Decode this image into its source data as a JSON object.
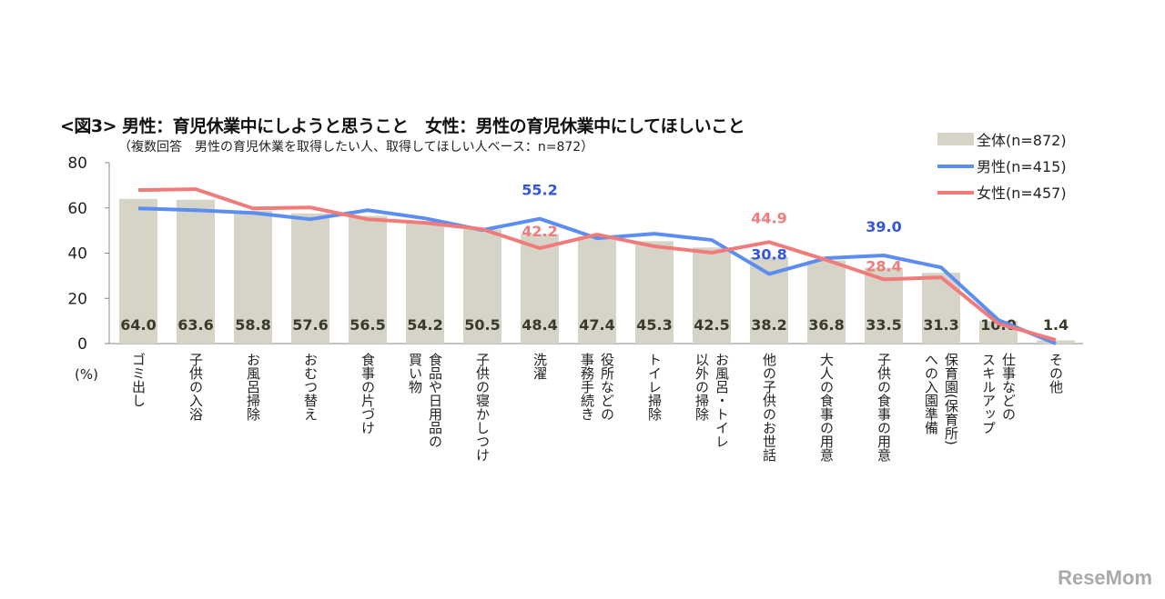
{
  "chart_data": {
    "type": "bar+line",
    "title": "<図3> 男性：育児休業中にしようと思うこと　女性：男性の育児休業中にしてほしいこと",
    "subtitle": "（複数回答　男性の育児休業を取得したい人、取得してほしい人ベース：n=872）",
    "ylabel": "(%)",
    "ylim": [
      0,
      80
    ],
    "yticks": [
      "0",
      "20",
      "40",
      "60",
      "80"
    ],
    "grid": false,
    "legend_position": "top-right",
    "categories": [
      "ゴミ出し",
      "子供の入浴",
      "お風呂掃除",
      "おむつ替え",
      "食事の片づけ",
      "食品や日用品の\n買い物",
      "子供の寝かしつけ",
      "洗濯",
      "役所などの\n事務手続き",
      "トイレ掃除",
      "お風呂・トイレ\n以外の掃除",
      "他の子供のお世話",
      "大人の食事の用意",
      "子供の食事の用意",
      "保育園(保育所)\nへの入園準備",
      "仕事などの\nスキルアップ",
      "その他"
    ],
    "series": [
      {
        "name": "全体(n=872)",
        "type": "bar",
        "color": "#d5d4c7",
        "values": [
          64.0,
          63.6,
          58.8,
          57.6,
          56.5,
          54.2,
          50.5,
          48.4,
          47.4,
          45.3,
          42.5,
          38.2,
          36.8,
          33.5,
          31.3,
          10.0,
          1.4
        ],
        "labels": [
          "64.0",
          "63.6",
          "58.8",
          "57.6",
          "56.5",
          "54.2",
          "50.5",
          "48.4",
          "47.4",
          "45.3",
          "42.5",
          "38.2",
          "36.8",
          "33.5",
          "31.3",
          "10.0",
          "1.4"
        ]
      },
      {
        "name": "男性(n=415)",
        "type": "line",
        "color": "#5b8ef0",
        "label_color": "#3355dd",
        "values": [
          59.8,
          59.0,
          57.8,
          55.0,
          59.0,
          55.4,
          50.2,
          55.2,
          46.6,
          48.6,
          45.8,
          30.8,
          37.8,
          39.0,
          33.7,
          10.4,
          0.0
        ],
        "annotations": [
          {
            "index": 7,
            "text": "55.2"
          },
          {
            "index": 11,
            "text": "30.8"
          },
          {
            "index": 13,
            "text": "39.0"
          }
        ]
      },
      {
        "name": "女性(n=457)",
        "type": "line",
        "color": "#f07b7b",
        "label_color": "#f07b7b",
        "values": [
          67.9,
          68.3,
          59.8,
          60.2,
          55.0,
          53.4,
          50.6,
          42.2,
          48.2,
          43.0,
          40.2,
          44.9,
          37.0,
          28.4,
          29.3,
          8.8,
          1.6
        ],
        "annotations": [
          {
            "index": 7,
            "text": "42.2"
          },
          {
            "index": 11,
            "text": "44.9"
          },
          {
            "index": 13,
            "text": "28.4"
          }
        ]
      }
    ]
  },
  "watermark": "ReseMom"
}
